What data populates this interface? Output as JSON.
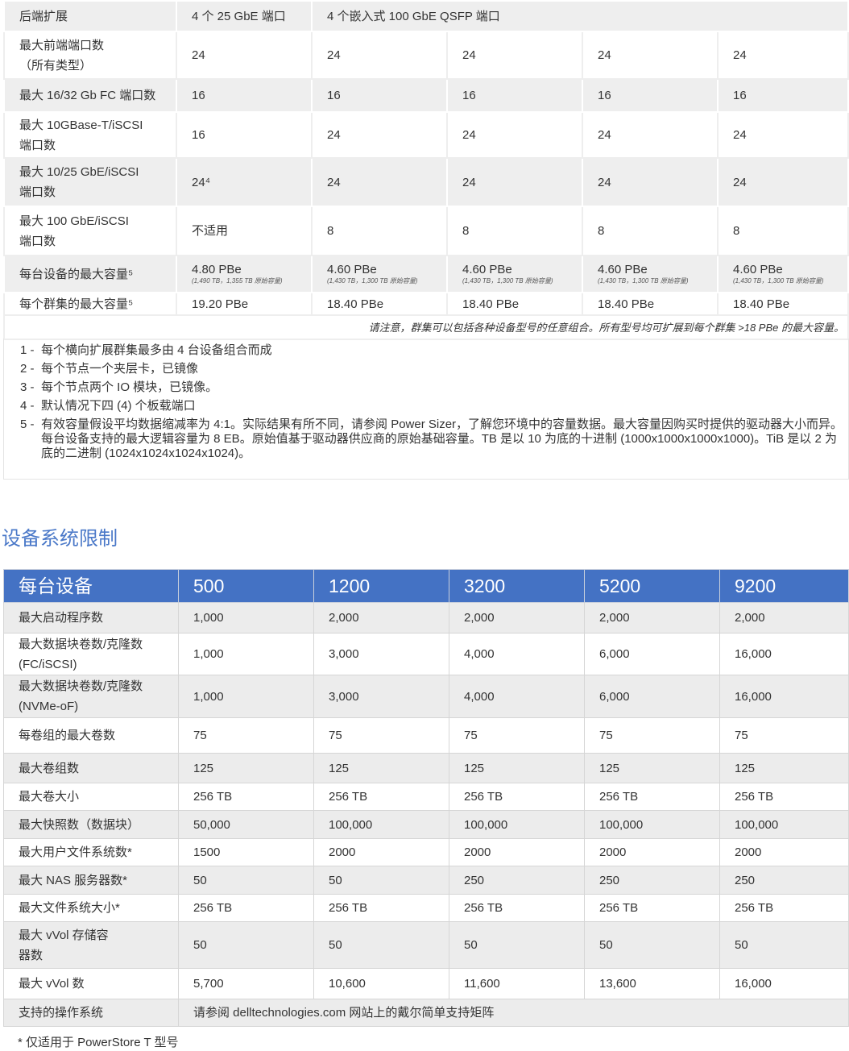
{
  "capacity_table": {
    "rows": [
      {
        "label": "后端扩展",
        "span": [
          "4 个 25 GbE 端口",
          "4 个嵌入式 100 GbE QSFP 端口"
        ]
      },
      {
        "label": "最大前端端口数\n（所有类型）",
        "values": [
          "24",
          "24",
          "24",
          "24",
          "24"
        ]
      },
      {
        "label": "最大 16/32 Gb FC 端口数",
        "values": [
          "16",
          "16",
          "16",
          "16",
          "16"
        ]
      },
      {
        "label": "最大 10GBase-T/iSCSI\n端口数",
        "values": [
          "16",
          "24",
          "24",
          "24",
          "24"
        ]
      },
      {
        "label": "最大 10/25 GbE/iSCSI\n端口数",
        "values": [
          "24⁴",
          "24",
          "24",
          "24",
          "24"
        ]
      },
      {
        "label": "最大 100 GbE/iSCSI\n端口数",
        "values": [
          "不适用",
          "8",
          "8",
          "8",
          "8"
        ]
      },
      {
        "label": "每台设备的最大容量⁵",
        "values": [
          "4.80 PBe",
          "4.60 PBe",
          "4.60 PBe",
          "4.60 PBe",
          "4.60 PBe"
        ],
        "subs": [
          "(1,490 TB，1,355 TB 原始容量)",
          "(1,430 TB，1,300 TB 原始容量)",
          "(1,430 TB，1,300 TB 原始容量)",
          "(1,430 TB，1,300 TB 原始容量)",
          "(1,430 TB，1,300 TB 原始容量)"
        ]
      },
      {
        "label": "每个群集的最大容量⁵",
        "values": [
          "19.20 PBe",
          "18.40 PBe",
          "18.40 PBe",
          "18.40 PBe",
          "18.40 PBe"
        ]
      }
    ],
    "note": "请注意，群集可以包括各种设备型号的任意组合。所有型号均可扩展到每个群集 >18 PBe 的最大容量。"
  },
  "footnotes": [
    {
      "n": "1 -",
      "text": "每个横向扩展群集最多由 4 台设备组合而成"
    },
    {
      "n": "2 -",
      "text": "每个节点一个夹层卡，已镜像"
    },
    {
      "n": "3 -",
      "text": "每个节点两个 IO 模块，已镜像。"
    },
    {
      "n": "4 -",
      "text": "默认情况下四 (4) 个板载端口"
    },
    {
      "n": "5 -",
      "text": "有效容量假设平均数据缩减率为 4:1。实际结果有所不同，请参阅 Power Sizer，了解您环境中的容量数据。最大容量因购买时提供的驱动器大小而异。每台设备支持的最大逻辑容量为 8 EB。原始值基于驱动器供应商的原始基础容量。TB 是以 10 为底的十进制 (1000x1000x1000x1000)。TiB 是以 2 为底的二进制 (1024x1024x1024x1024)。"
    }
  ],
  "section_title": "设备系统限制",
  "limits_table": {
    "header": [
      "每台设备",
      "500",
      "1200",
      "3200",
      "5200",
      "9200"
    ],
    "rows": [
      {
        "label": "最大启动程序数",
        "values": [
          "1,000",
          "2,000",
          "2,000",
          "2,000",
          "2,000"
        ]
      },
      {
        "label": "最大数据块卷数/克隆数\n(FC/iSCSI)",
        "values": [
          "1,000",
          "3,000",
          "4,000",
          "6,000",
          "16,000"
        ]
      },
      {
        "label": "最大数据块卷数/克隆数\n(NVMe-oF)",
        "values": [
          "1,000",
          "3,000",
          "4,000",
          "6,000",
          "16,000"
        ]
      },
      {
        "label": "每卷组的最大卷数",
        "values": [
          "75",
          "75",
          "75",
          "75",
          "75"
        ]
      },
      {
        "label": "最大卷组数",
        "values": [
          "125",
          "125",
          "125",
          "125",
          "125"
        ]
      },
      {
        "label": "最大卷大小",
        "values": [
          "256 TB",
          "256 TB",
          "256 TB",
          "256 TB",
          "256 TB"
        ]
      },
      {
        "label": "最大快照数（数据块）",
        "values": [
          "50,000",
          "100,000",
          "100,000",
          "100,000",
          "100,000"
        ]
      },
      {
        "label": "最大用户文件系统数*",
        "values": [
          "1500",
          "2000",
          "2000",
          "2000",
          "2000"
        ]
      },
      {
        "label": "最大 NAS 服务器数*",
        "values": [
          "50",
          "50",
          "250",
          "250",
          "250"
        ]
      },
      {
        "label": "最大文件系统大小*",
        "values": [
          "256 TB",
          "256 TB",
          "256 TB",
          "256 TB",
          "256 TB"
        ]
      },
      {
        "label": "最大 vVol 存储容\n器数",
        "values": [
          "50",
          "50",
          "50",
          "50",
          "50"
        ]
      },
      {
        "label": "最大 vVol 数",
        "values": [
          "5,700",
          "10,600",
          "11,600",
          "13,600",
          "16,000"
        ]
      },
      {
        "label": "支持的操作系统",
        "span_all": "请参阅 delltechnologies.com 网站上的戴尔简单支持矩阵"
      }
    ],
    "footnote": "* 仅适用于 PowerStore T 型号"
  }
}
